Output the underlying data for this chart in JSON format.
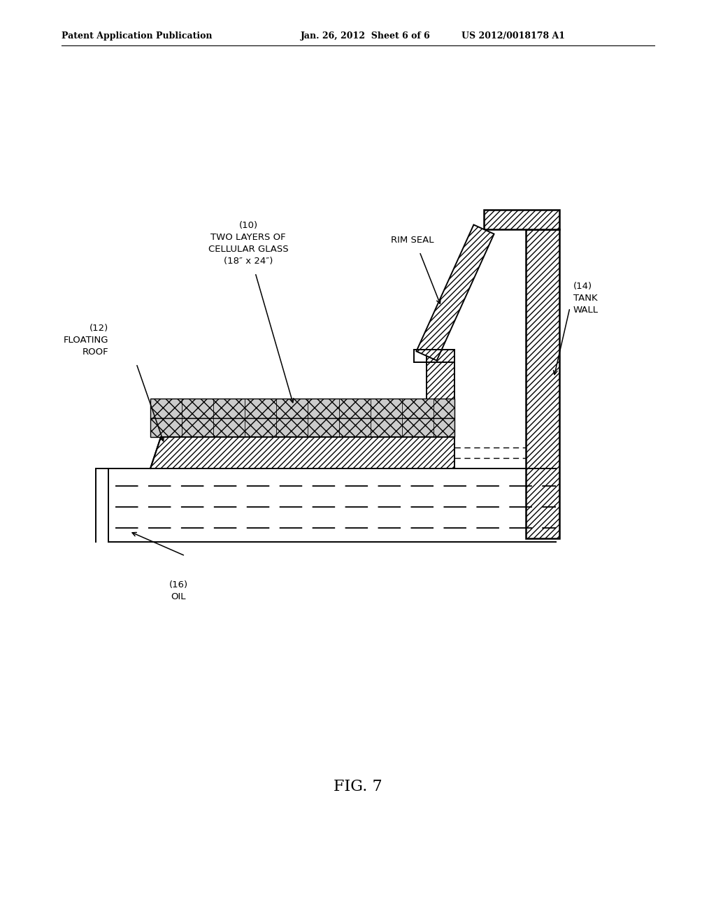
{
  "title_left": "Patent Application Publication",
  "title_center": "Jan. 26, 2012  Sheet 6 of 6",
  "title_right": "US 2012/0018178 A1",
  "fig_label": "FIG. 7",
  "background_color": "#ffffff",
  "line_color": "#000000",
  "label_10": "(10)\nTWO LAYERS OF\nCELLULAR GLASS\n(18″ x 24″)",
  "label_12": "(12)\nFLOATING\nROOF",
  "label_14": "(14)\nTANK\nWALL",
  "label_16": "(16)\nOIL",
  "label_rim": "RIM SEAL"
}
